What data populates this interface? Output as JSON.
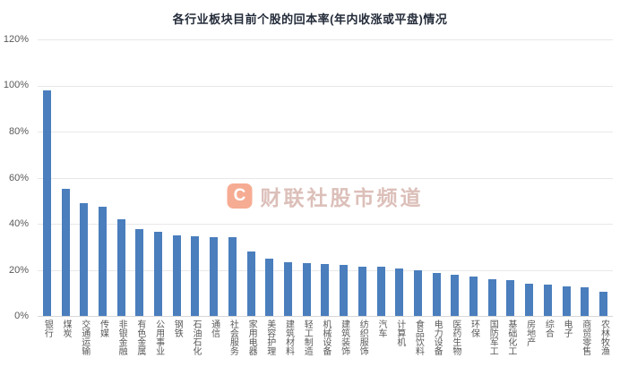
{
  "title": "各行业板块目前个股的回本率(年内收涨或平盘)情况",
  "watermark": {
    "logo_letter": "C",
    "text": "财联社股市频道"
  },
  "colors": {
    "bar": "#4a7ebd",
    "title": "#242c3a",
    "axis_label": "#595959",
    "gridline": "#e8e8e8",
    "watermark_logo": "#ef6a3c"
  },
  "chart_data": {
    "type": "bar",
    "title": "各行业板块目前个股的回本率(年内收涨或平盘)情况",
    "categories": [
      "银行",
      "煤炭",
      "交通运输",
      "传媒",
      "非银金融",
      "有色金属",
      "公用事业",
      "钢铁",
      "石油石化",
      "通信",
      "社会服务",
      "家用电器",
      "美容护理",
      "建筑材料",
      "轻工制造",
      "机械设备",
      "建筑装饰",
      "纺织服饰",
      "汽车",
      "计算机",
      "食品饮料",
      "电力设备",
      "医药生物",
      "环保",
      "国防军工",
      "基础化工",
      "房地产",
      "综合",
      "电子",
      "商贸零售",
      "农林牧渔"
    ],
    "values": [
      98,
      55,
      49,
      47.5,
      42,
      37.5,
      36.5,
      35,
      34.5,
      34,
      34,
      28,
      25,
      23.5,
      23,
      22.5,
      22,
      21.5,
      21.5,
      20.5,
      20,
      18.5,
      18,
      17,
      16,
      15.5,
      14,
      13.5,
      13,
      12.5,
      10.5
    ],
    "xlabel": "",
    "ylabel": "",
    "ylim": [
      0,
      120
    ],
    "yticks": [
      0,
      20,
      40,
      60,
      80,
      100,
      120
    ],
    "ytick_labels": [
      "0%",
      "20%",
      "40%",
      "60%",
      "80%",
      "100%",
      "120%"
    ],
    "grid": true,
    "legend": false
  }
}
